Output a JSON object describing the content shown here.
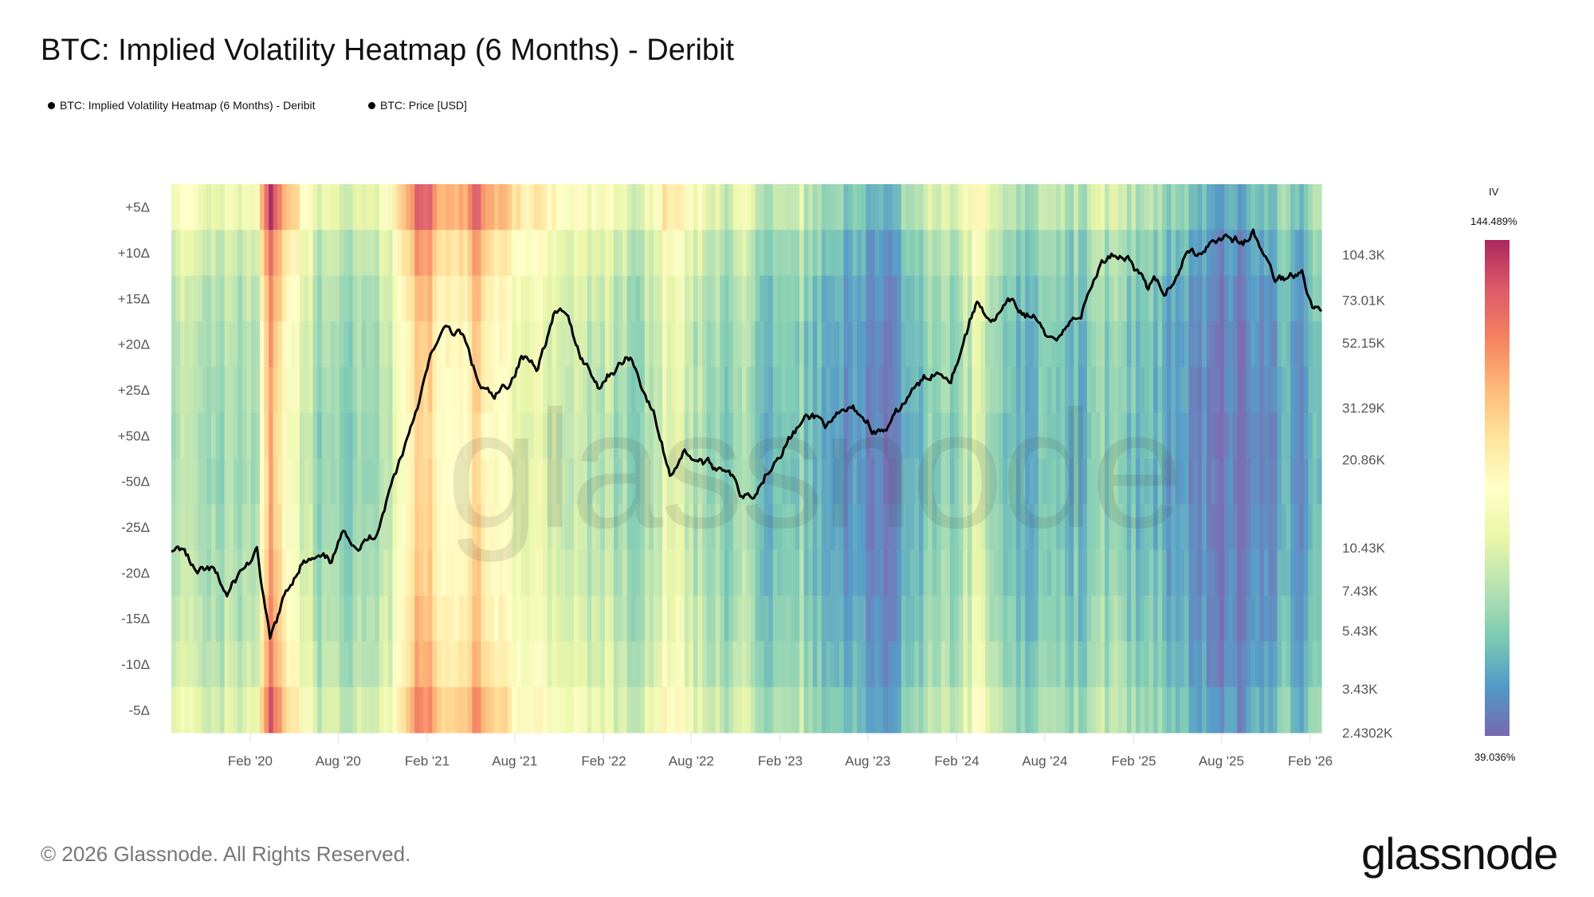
{
  "title": "BTC: Implied Volatility Heatmap (6 Months) - Deribit",
  "legend": [
    {
      "label": "BTC: Implied Volatility Heatmap (6 Months) - Deribit",
      "color": "#000000"
    },
    {
      "label": "BTC: Price [USD]",
      "color": "#000000"
    }
  ],
  "footer": "© 2026 Glassnode. All Rights Reserved.",
  "logo": "glassnode",
  "watermark": "glassnode",
  "chart_data": {
    "type": "heatmap",
    "title": "BTC: Implied Volatility Heatmap (6 Months) - Deribit",
    "x_range": [
      "2019-08-22",
      "2026-02-24"
    ],
    "x_ticks": [
      {
        "date": "2020-02-01",
        "label": "Feb '20"
      },
      {
        "date": "2020-08-01",
        "label": "Aug '20"
      },
      {
        "date": "2021-02-01",
        "label": "Feb '21"
      },
      {
        "date": "2021-08-01",
        "label": "Aug '21"
      },
      {
        "date": "2022-02-01",
        "label": "Feb '22"
      },
      {
        "date": "2022-08-01",
        "label": "Aug '22"
      },
      {
        "date": "2023-02-01",
        "label": "Feb '23"
      },
      {
        "date": "2023-08-01",
        "label": "Aug '23"
      },
      {
        "date": "2024-02-01",
        "label": "Feb '24"
      },
      {
        "date": "2024-08-01",
        "label": "Aug '24"
      },
      {
        "date": "2025-02-01",
        "label": "Feb '25"
      },
      {
        "date": "2025-08-01",
        "label": "Aug '25"
      },
      {
        "date": "2026-02-01",
        "label": "Feb '26"
      }
    ],
    "delta_rows": [
      "+5Δ",
      "+10Δ",
      "+15Δ",
      "+20Δ",
      "+25Δ",
      "+50Δ",
      "-50Δ",
      "-25Δ",
      "-20Δ",
      "-15Δ",
      "-10Δ",
      "-5Δ"
    ],
    "colorbar": {
      "title": "IV",
      "min": 39.036,
      "max": 144.489,
      "min_label": "39.036%",
      "max_label": "144.489%",
      "colormap": "spectral-reversed",
      "colors": [
        "#5e4fa2",
        "#3288bd",
        "#66c2a5",
        "#abdda4",
        "#e6f598",
        "#ffffbf",
        "#fee08b",
        "#fdae61",
        "#f46d43",
        "#d53e4f",
        "#9e0142"
      ]
    },
    "months": [
      "2019-09",
      "2019-10",
      "2019-11",
      "2019-12",
      "2020-01",
      "2020-02",
      "2020-03",
      "2020-04",
      "2020-05",
      "2020-06",
      "2020-07",
      "2020-08",
      "2020-09",
      "2020-10",
      "2020-11",
      "2020-12",
      "2021-01",
      "2021-02",
      "2021-03",
      "2021-04",
      "2021-05",
      "2021-06",
      "2021-07",
      "2021-08",
      "2021-09",
      "2021-10",
      "2021-11",
      "2021-12",
      "2022-01",
      "2022-02",
      "2022-03",
      "2022-04",
      "2022-05",
      "2022-06",
      "2022-07",
      "2022-08",
      "2022-09",
      "2022-10",
      "2022-11",
      "2022-12",
      "2023-01",
      "2023-02",
      "2023-03",
      "2023-04",
      "2023-05",
      "2023-06",
      "2023-07",
      "2023-08",
      "2023-09",
      "2023-10",
      "2023-11",
      "2023-12",
      "2024-01",
      "2024-02",
      "2024-03",
      "2024-04",
      "2024-05",
      "2024-06",
      "2024-07",
      "2024-08",
      "2024-09",
      "2024-10",
      "2024-11",
      "2024-12",
      "2025-01",
      "2025-02",
      "2025-03",
      "2025-04",
      "2025-05",
      "2025-06",
      "2025-07",
      "2025-08",
      "2025-09",
      "2025-10",
      "2025-11",
      "2025-12",
      "2026-01",
      "2026-02"
    ],
    "atm_iv": [
      72,
      70,
      68,
      66,
      65,
      72,
      112,
      88,
      80,
      66,
      62,
      64,
      62,
      60,
      74,
      86,
      108,
      100,
      90,
      92,
      106,
      95,
      86,
      80,
      80,
      76,
      72,
      72,
      72,
      70,
      66,
      62,
      72,
      82,
      76,
      68,
      64,
      58,
      72,
      58,
      57,
      56,
      62,
      55,
      52,
      50,
      45,
      46,
      44,
      52,
      56,
      63,
      60,
      66,
      78,
      65,
      58,
      56,
      56,
      58,
      55,
      56,
      62,
      62,
      58,
      56,
      56,
      52,
      48,
      45,
      43,
      42,
      42,
      45,
      50,
      50,
      48,
      55
    ],
    "row_offsets_iv": [
      16,
      8,
      4,
      2,
      1,
      0,
      0,
      1,
      2,
      4,
      6,
      11
    ],
    "price": {
      "name": "BTC: Price [USD]",
      "scale": "log",
      "ylim": [
        2430.2,
        182000
      ],
      "ticks": [
        {
          "value": 104300,
          "label": "104.3K"
        },
        {
          "value": 73010,
          "label": "73.01K"
        },
        {
          "value": 52150,
          "label": "52.15K"
        },
        {
          "value": 31290,
          "label": "31.29K"
        },
        {
          "value": 20860,
          "label": "20.86K"
        },
        {
          "value": 10430,
          "label": "10.43K"
        },
        {
          "value": 7430,
          "label": "7.43K"
        },
        {
          "value": 5430,
          "label": "5.43K"
        },
        {
          "value": 3430,
          "label": "3.43K"
        },
        {
          "value": 2430.2,
          "label": "2.4302K"
        }
      ],
      "dates": [
        "2019-08-22",
        "2019-09-15",
        "2019-10-15",
        "2019-11-15",
        "2019-12-15",
        "2020-01-15",
        "2020-02-15",
        "2020-03-13",
        "2020-04-15",
        "2020-05-15",
        "2020-06-15",
        "2020-07-15",
        "2020-08-15",
        "2020-09-15",
        "2020-10-15",
        "2020-11-15",
        "2020-12-15",
        "2021-01-15",
        "2021-02-15",
        "2021-03-15",
        "2021-04-15",
        "2021-05-20",
        "2021-06-20",
        "2021-07-20",
        "2021-08-15",
        "2021-09-15",
        "2021-10-20",
        "2021-11-10",
        "2021-12-15",
        "2022-01-20",
        "2022-02-15",
        "2022-03-28",
        "2022-04-15",
        "2022-05-15",
        "2022-06-18",
        "2022-07-15",
        "2022-08-15",
        "2022-09-15",
        "2022-10-15",
        "2022-11-10",
        "2022-12-15",
        "2023-01-20",
        "2023-02-15",
        "2023-03-20",
        "2023-04-15",
        "2023-05-15",
        "2023-06-25",
        "2023-07-15",
        "2023-08-20",
        "2023-09-15",
        "2023-10-25",
        "2023-11-15",
        "2023-12-15",
        "2024-01-20",
        "2024-02-28",
        "2024-03-14",
        "2024-04-15",
        "2024-05-20",
        "2024-06-15",
        "2024-07-15",
        "2024-08-05",
        "2024-09-15",
        "2024-10-15",
        "2024-11-20",
        "2024-12-17",
        "2025-01-20",
        "2025-02-28",
        "2025-03-15",
        "2025-04-08",
        "2025-05-20",
        "2025-06-15",
        "2025-07-14",
        "2025-08-14",
        "2025-09-15",
        "2025-10-06",
        "2025-11-20",
        "2025-12-15",
        "2026-01-15",
        "2026-02-05",
        "2026-02-24"
      ],
      "values": [
        10100,
        10300,
        8300,
        8600,
        7100,
        8700,
        9900,
        4900,
        7200,
        9300,
        9400,
        9200,
        11800,
        10700,
        11500,
        16500,
        23000,
        34000,
        50000,
        58000,
        55000,
        37000,
        33000,
        38000,
        47000,
        44000,
        64000,
        67000,
        48000,
        38000,
        42000,
        47000,
        40000,
        30000,
        18500,
        22500,
        21000,
        19500,
        20000,
        16000,
        16800,
        21500,
        24500,
        28000,
        29000,
        27000,
        30500,
        30000,
        26000,
        26500,
        34500,
        37000,
        42000,
        41000,
        62000,
        72000,
        63000,
        70000,
        66000,
        64000,
        52000,
        60000,
        67000,
        94000,
        106000,
        104000,
        82000,
        84000,
        76000,
        108000,
        105000,
        121000,
        123000,
        115000,
        124000,
        86000,
        87000,
        95000,
        70000,
        67000
      ]
    }
  }
}
